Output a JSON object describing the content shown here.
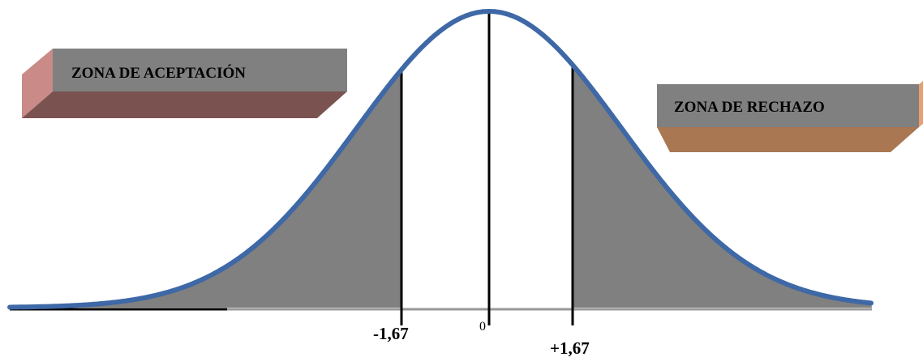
{
  "labels": {
    "acceptance_zone": "ZONA DE ACEPTACIÓN",
    "rejection_zone": "ZONA DE RECHAZO"
  },
  "ticks": {
    "left": "-1,67",
    "center": "0",
    "right": "+1,67"
  },
  "colors": {
    "curve": "#3e68a6",
    "shaded_tail": "#808080",
    "box_face": "#808080",
    "acceptance_box_side": "#c98a88",
    "acceptance_box_bottom": "#7a5250",
    "rejection_box_side": "#e7a070",
    "rejection_box_bottom": "#a97853",
    "axis": "#000000"
  }
}
